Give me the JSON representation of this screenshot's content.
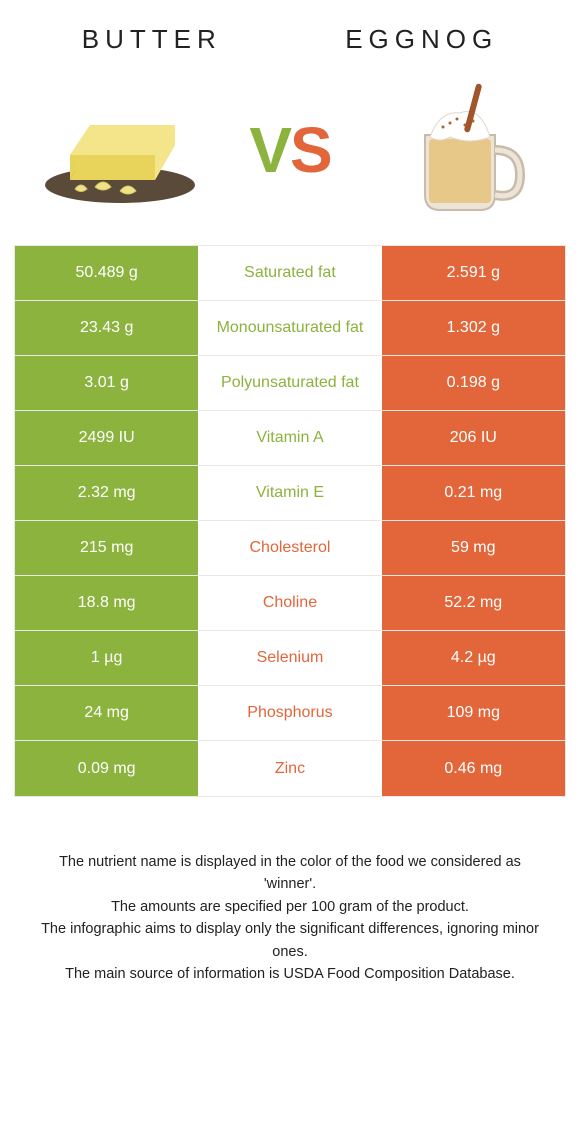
{
  "colors": {
    "left": "#8bb33e",
    "right": "#e2663a",
    "border": "#e8e8e8",
    "text": "#222222",
    "white": "#ffffff"
  },
  "header": {
    "left_title": "Butter",
    "right_title": "Eggnog",
    "vs_v": "V",
    "vs_s": "S"
  },
  "rows": [
    {
      "left": "50.489 g",
      "label": "Saturated fat",
      "right": "2.591 g",
      "winner": "left"
    },
    {
      "left": "23.43 g",
      "label": "Monounsaturated fat",
      "right": "1.302 g",
      "winner": "left"
    },
    {
      "left": "3.01 g",
      "label": "Polyunsaturated fat",
      "right": "0.198 g",
      "winner": "left"
    },
    {
      "left": "2499 IU",
      "label": "Vitamin A",
      "right": "206 IU",
      "winner": "left"
    },
    {
      "left": "2.32 mg",
      "label": "Vitamin E",
      "right": "0.21 mg",
      "winner": "left"
    },
    {
      "left": "215 mg",
      "label": "Cholesterol",
      "right": "59 mg",
      "winner": "right"
    },
    {
      "left": "18.8 mg",
      "label": "Choline",
      "right": "52.2 mg",
      "winner": "right"
    },
    {
      "left": "1 µg",
      "label": "Selenium",
      "right": "4.2 µg",
      "winner": "right"
    },
    {
      "left": "24 mg",
      "label": "Phosphorus",
      "right": "109 mg",
      "winner": "right"
    },
    {
      "left": "0.09 mg",
      "label": "Zinc",
      "right": "0.46 mg",
      "winner": "right"
    }
  ],
  "notes": [
    "The nutrient name is displayed in the color of the food we considered as 'winner'.",
    "The amounts are specified per 100 gram of the product.",
    "The infographic aims to display only the significant differences, ignoring minor ones.",
    "The main source of information is USDA Food Composition Database."
  ]
}
